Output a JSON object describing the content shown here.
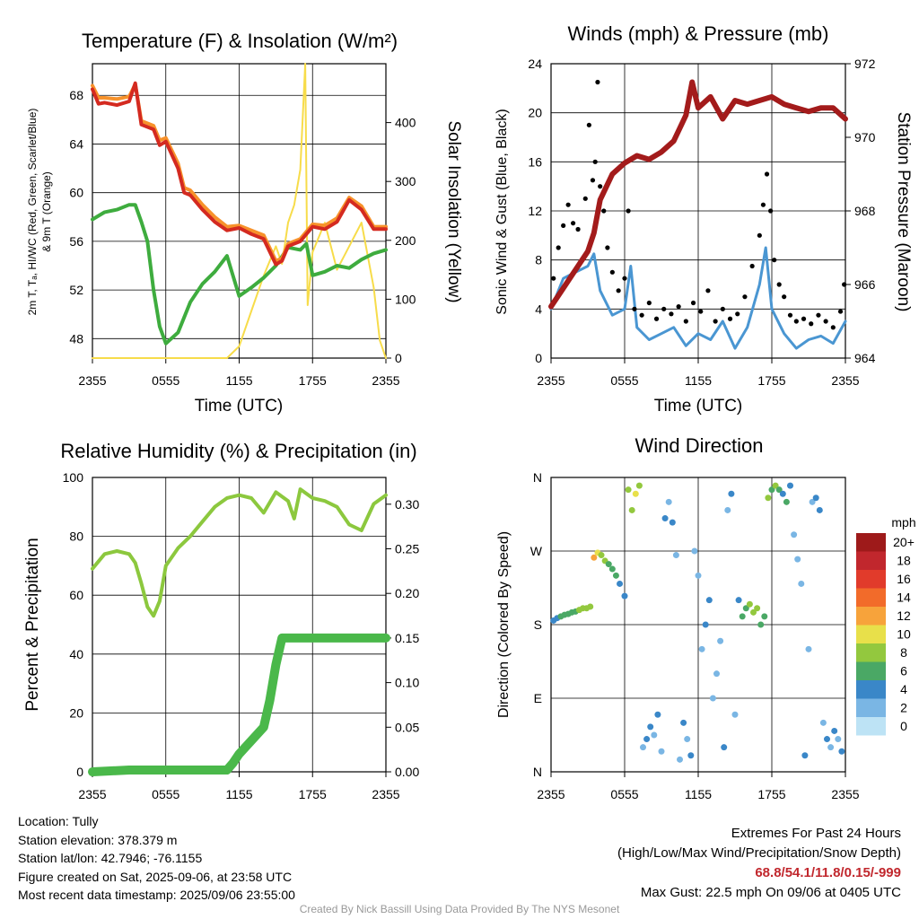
{
  "panels": {
    "temp": {
      "title": "Temperature (F) & Insolation (W/m²)",
      "ylabel_line1": "2m T, Tₐ, HI/WC (Red, Green, Scarlet/Blue)",
      "ylabel_line2": "& 9m T (Orange)",
      "ylabel_right": "Solar Insolation (Yellow)",
      "xlabel": "Time (UTC)"
    },
    "wind": {
      "title": "Winds (mph) & Pressure (mb)",
      "ylabel_left": "Sonic Wind & Gust (Blue, Black)",
      "ylabel_right": "Station Pressure (Maroon)",
      "xlabel": "Time (UTC)"
    },
    "rh": {
      "title": "Relative Humidity (%) & Precipitation (in)",
      "ylabel_left": "Percent & Precipitation"
    },
    "dir": {
      "title": "Wind Direction",
      "ylabel_left": "Direction (Colored By Speed)",
      "legend_title": "mph"
    }
  },
  "x_ticks": [
    "2355",
    "0555",
    "1155",
    "1755",
    "2355"
  ],
  "info": {
    "location": "Location: Tully",
    "elevation": "Station elevation: 378.379 m",
    "latlon": "Station lat/lon: 42.7946; -76.1155",
    "created": "Figure created on Sat, 2025-09-06, at 23:58 UTC",
    "recent": "Most recent data timestamp: 2025/09/06 23:55:00"
  },
  "extremes": {
    "title": "Extremes For Past 24 Hours",
    "subtitle": "(High/Low/Max Wind/Precipitation/Snow Depth)",
    "values": "68.8/54.1/11.8/0.15/-999",
    "gust": "Max Gust: 22.5 mph On 09/06 at 0405 UTC"
  },
  "credit": "Created By Nick Bassill Using Data Provided By The NYS Mesonet",
  "colors": {
    "temp": "#d42a20",
    "dewpoint": "#3eac3e",
    "temp9m": "#f7922b",
    "heatindex": "#e8372a",
    "windchill": "#3a87c8",
    "solar": "#f7dc4a",
    "wind": "#4a96d2",
    "gust": "#000000",
    "pressure": "#a31b1b",
    "rh": "#8cc83e",
    "precip": "#4ab84a"
  },
  "chart_data": [
    {
      "type": "line",
      "title": "Temperature (F) & Insolation (W/m²)",
      "xlabel": "Time (UTC)",
      "x_ticks": [
        "2355",
        "0555",
        "1155",
        "1755",
        "2355"
      ],
      "ylim": [
        46.4,
        70.6
      ],
      "y_ticks": [
        48,
        52,
        56,
        60,
        64,
        68
      ],
      "y2lim": [
        0,
        500
      ],
      "y2_ticks": [
        0,
        100,
        200,
        300,
        400
      ],
      "ylabel": "2m T, Tₐ, HI/WC (Red, Green, Scarlet/Blue) & 9m T (Orange)",
      "y2label": "Solar Insolation (Yellow)",
      "grid": true,
      "series": [
        {
          "name": "2m T",
          "color": "#d42a20",
          "axis": "left",
          "x": [
            0,
            0.5,
            1,
            2,
            3,
            3.5,
            4,
            5,
            5.5,
            6,
            7,
            7.5,
            8,
            9,
            10,
            11,
            12,
            13,
            14,
            15,
            15.5,
            16,
            17,
            18,
            19,
            20,
            21,
            22,
            23,
            24
          ],
          "y": [
            68.5,
            67.3,
            67.4,
            67.2,
            67.5,
            69.0,
            65.6,
            65.2,
            63.9,
            64.2,
            62.0,
            60.0,
            59.8,
            58.6,
            57.6,
            56.9,
            57.1,
            56.6,
            56.2,
            54.1,
            54.4,
            55.6,
            56.0,
            57.2,
            57.0,
            57.6,
            59.4,
            58.6,
            57.0,
            57.0
          ]
        },
        {
          "name": "9m T",
          "color": "#f7922b",
          "axis": "left",
          "x": [
            0,
            0.5,
            1,
            2,
            3,
            3.5,
            4,
            5,
            5.5,
            6,
            7,
            7.5,
            8,
            9,
            10,
            11,
            12,
            13,
            14,
            15,
            15.5,
            16,
            17,
            18,
            19,
            20,
            21,
            22,
            23,
            24
          ],
          "y": [
            68.8,
            67.8,
            67.8,
            67.7,
            67.9,
            68.9,
            65.9,
            65.5,
            64.3,
            64.5,
            62.4,
            60.4,
            60.2,
            59.0,
            58.0,
            57.2,
            57.3,
            56.9,
            56.5,
            54.4,
            54.6,
            55.8,
            56.2,
            57.4,
            57.3,
            57.9,
            59.6,
            58.9,
            57.2,
            57.2
          ]
        },
        {
          "name": "Dew point",
          "color": "#3eac3e",
          "axis": "left",
          "x": [
            0,
            1,
            2,
            3,
            3.5,
            4,
            4.5,
            5,
            5.5,
            6,
            7,
            8,
            9,
            10,
            11,
            12,
            13,
            14,
            15,
            16,
            17,
            17.5,
            18,
            19,
            20,
            21,
            22,
            23,
            24
          ],
          "y": [
            57.8,
            58.4,
            58.6,
            59.0,
            59.0,
            57.6,
            56.0,
            52.0,
            49.0,
            47.6,
            48.5,
            51.0,
            52.5,
            53.5,
            54.8,
            51.5,
            52.2,
            53.0,
            54.0,
            55.5,
            55.3,
            55.8,
            53.2,
            53.5,
            54.0,
            53.8,
            54.5,
            55.0,
            55.3
          ]
        },
        {
          "name": "Solar Insolation",
          "color": "#f7dc4a",
          "axis": "right",
          "x": [
            0,
            6,
            11,
            12,
            13,
            14,
            15,
            15.5,
            16,
            16.5,
            17,
            17.4,
            17.6,
            18,
            19,
            20,
            21,
            22,
            23,
            23.5,
            24
          ],
          "y": [
            0,
            0,
            0,
            20,
            80,
            140,
            190,
            160,
            230,
            260,
            320,
            500,
            90,
            180,
            230,
            150,
            190,
            230,
            120,
            30,
            0
          ]
        }
      ]
    },
    {
      "type": "line",
      "title": "Winds (mph) & Pressure (mb)",
      "xlabel": "Time (UTC)",
      "x_ticks": [
        "2355",
        "0555",
        "1155",
        "1755",
        "2355"
      ],
      "ylim": [
        0,
        24
      ],
      "y_ticks": [
        0,
        4,
        8,
        12,
        16,
        20,
        24
      ],
      "y2lim": [
        964,
        972
      ],
      "y2_ticks": [
        964,
        966,
        968,
        970,
        972
      ],
      "ylabel": "Sonic Wind & Gust (Blue, Black)",
      "y2label": "Station Pressure (Maroon)",
      "grid": true,
      "series": [
        {
          "name": "Sonic Wind",
          "color": "#4a96d2",
          "axis": "left",
          "x": [
            0,
            1,
            2,
            3,
            3.5,
            4,
            5,
            6,
            6.5,
            7,
            8,
            9,
            10,
            11,
            12,
            13,
            14,
            15,
            16,
            17,
            17.5,
            18,
            19,
            20,
            21,
            22,
            23,
            24
          ],
          "y": [
            4.0,
            6.5,
            7.0,
            7.5,
            8.5,
            5.5,
            3.5,
            4.0,
            7.5,
            2.5,
            1.5,
            2.0,
            2.5,
            1.0,
            2.0,
            1.5,
            3.0,
            0.8,
            2.5,
            6.0,
            9.0,
            4.0,
            2.0,
            0.8,
            1.5,
            1.8,
            1.2,
            3.0
          ]
        },
        {
          "name": "Gust",
          "color": "#000000",
          "axis": "left",
          "x": [
            0.2,
            0.6,
            1.0,
            1.4,
            1.8,
            2.2,
            2.5,
            2.8,
            3.1,
            3.4,
            3.6,
            3.8,
            4.0,
            4.3,
            4.6,
            5.0,
            5.5,
            6.0,
            6.3,
            6.8,
            7.4,
            8.0,
            8.6,
            9.2,
            9.8,
            10.4,
            11.0,
            11.6,
            12.2,
            12.8,
            13.4,
            14.0,
            14.6,
            15.2,
            15.8,
            16.4,
            17.0,
            17.3,
            17.6,
            17.9,
            18.2,
            18.6,
            19.0,
            19.5,
            20.0,
            20.6,
            21.2,
            21.8,
            22.4,
            23.0,
            23.6,
            23.9
          ],
          "y": [
            6.5,
            9.0,
            10.8,
            12.5,
            11.0,
            10.5,
            8.0,
            13.0,
            19.0,
            14.5,
            16.0,
            22.5,
            14.0,
            12.0,
            9.0,
            7.0,
            5.5,
            6.5,
            12.0,
            4.0,
            3.5,
            4.5,
            3.2,
            4.0,
            3.6,
            4.2,
            3.0,
            4.5,
            3.8,
            5.5,
            3.0,
            4.0,
            3.2,
            3.6,
            5.0,
            7.5,
            10.0,
            12.5,
            15.0,
            12.0,
            8.0,
            6.0,
            5.0,
            3.5,
            3.0,
            3.2,
            2.8,
            3.5,
            3.0,
            2.5,
            3.8,
            6.0
          ]
        },
        {
          "name": "Station Pressure",
          "color": "#a31b1b",
          "axis": "right",
          "x": [
            0,
            1,
            2,
            3,
            3.5,
            4,
            5,
            6,
            7,
            8,
            9,
            10,
            11,
            11.5,
            12,
            13,
            14,
            15,
            16,
            17,
            18,
            19,
            20,
            21,
            22,
            23,
            24
          ],
          "y": [
            965.4,
            965.9,
            966.4,
            966.9,
            967.4,
            968.3,
            969.0,
            969.3,
            969.5,
            969.4,
            969.6,
            969.9,
            970.6,
            971.5,
            970.8,
            971.1,
            970.5,
            971.0,
            970.9,
            971.0,
            971.1,
            970.9,
            970.8,
            970.7,
            970.8,
            970.8,
            970.5
          ]
        }
      ]
    },
    {
      "type": "line",
      "title": "Relative Humidity (%) & Precipitation (in)",
      "x_ticks": [
        "2355",
        "0555",
        "1155",
        "1755",
        "2355"
      ],
      "ylim": [
        0,
        100
      ],
      "y_ticks": [
        0,
        20,
        40,
        60,
        80,
        100
      ],
      "y2lim": [
        0,
        0.33
      ],
      "y2_ticks": [
        0.0,
        0.05,
        0.1,
        0.15,
        0.2,
        0.25,
        0.3
      ],
      "ylabel": "Percent & Precipitation",
      "grid": true,
      "series": [
        {
          "name": "Relative Humidity",
          "color": "#8cc83e",
          "axis": "left",
          "x": [
            0,
            1,
            2,
            3,
            3.5,
            4,
            4.5,
            5,
            5.5,
            6,
            7,
            8,
            9,
            10,
            11,
            12,
            13,
            14,
            15,
            16,
            16.5,
            17,
            18,
            19,
            20,
            21,
            22,
            23,
            24
          ],
          "y": [
            69,
            74,
            75,
            74,
            71,
            64,
            56,
            53,
            58,
            70,
            76,
            80,
            85,
            90,
            93,
            94,
            93,
            88,
            95,
            92,
            86,
            96,
            93,
            92,
            90,
            84,
            82,
            91,
            94
          ]
        },
        {
          "name": "Precipitation",
          "color": "#4ab84a",
          "axis": "right",
          "x": [
            0,
            3,
            11,
            11.5,
            12,
            13,
            14,
            14.5,
            15,
            15.5,
            16,
            17,
            24
          ],
          "y": [
            0.0,
            0.002,
            0.002,
            0.01,
            0.02,
            0.035,
            0.05,
            0.08,
            0.12,
            0.15,
            0.15,
            0.15,
            0.15
          ]
        }
      ]
    },
    {
      "type": "scatter",
      "title": "Wind Direction",
      "x_ticks": [
        "2355",
        "0555",
        "1155",
        "1755",
        "2355"
      ],
      "y_tick_labels": [
        "N",
        "E",
        "S",
        "W",
        "N"
      ],
      "ylim": [
        0,
        360
      ],
      "ylabel": "Direction (Colored By Speed)",
      "grid": true,
      "legend": {
        "title": "mph",
        "labels": [
          "20+",
          "18",
          "16",
          "14",
          "12",
          "10",
          "8",
          "6",
          "4",
          "2",
          "0"
        ],
        "colors": [
          "#9e1a1a",
          "#c1272d",
          "#e13b2b",
          "#f26b2a",
          "#f7a33b",
          "#e8e04a",
          "#93c83e",
          "#4aa865",
          "#3a87c8",
          "#7ab6e4",
          "#bde3f5"
        ]
      },
      "points_x": [
        0.2,
        0.5,
        0.8,
        1.1,
        1.4,
        1.7,
        2.0,
        2.3,
        2.6,
        2.9,
        3.2,
        3.5,
        3.8,
        4.1,
        4.4,
        4.7,
        5.0,
        5.3,
        5.6,
        6.0,
        6.3,
        6.6,
        6.9,
        7.2,
        7.5,
        7.8,
        8.1,
        8.4,
        8.7,
        9.0,
        9.3,
        9.6,
        9.9,
        10.2,
        10.5,
        10.8,
        11.1,
        11.4,
        11.7,
        12.0,
        12.3,
        12.6,
        12.9,
        13.2,
        13.5,
        13.8,
        14.1,
        14.4,
        14.7,
        15.0,
        15.3,
        15.6,
        15.9,
        16.2,
        16.5,
        16.8,
        17.1,
        17.4,
        17.7,
        18.0,
        18.3,
        18.6,
        18.9,
        19.2,
        19.5,
        19.8,
        20.1,
        20.4,
        20.7,
        21.0,
        21.3,
        21.6,
        21.9,
        22.2,
        22.5,
        22.8,
        23.1,
        23.4,
        23.7
      ],
      "points_y": [
        185,
        188,
        190,
        192,
        193,
        195,
        196,
        198,
        200,
        200,
        202,
        262,
        268,
        265,
        258,
        254,
        248,
        240,
        230,
        215,
        345,
        320,
        340,
        350,
        30,
        40,
        55,
        45,
        70,
        25,
        310,
        330,
        305,
        265,
        15,
        60,
        40,
        20,
        270,
        240,
        150,
        180,
        210,
        90,
        120,
        160,
        30,
        320,
        340,
        70,
        210,
        190,
        200,
        205,
        195,
        200,
        180,
        190,
        335,
        345,
        350,
        345,
        340,
        330,
        350,
        290,
        260,
        230,
        20,
        150,
        330,
        335,
        320,
        60,
        40,
        30,
        50,
        40,
        25
      ],
      "points_speed": [
        4,
        4,
        5,
        6,
        6,
        6,
        6,
        7,
        7,
        7,
        7,
        12,
        9,
        8,
        8,
        6,
        6,
        5,
        4,
        4,
        7,
        8,
        9,
        7,
        2,
        3,
        3,
        2,
        4,
        1,
        3,
        2,
        3,
        2,
        2,
        4,
        1,
        3,
        2,
        2,
        1,
        3,
        3,
        2,
        2,
        1,
        3,
        2,
        4,
        1,
        3,
        5,
        6,
        7,
        8,
        8,
        6,
        5,
        8,
        6,
        7,
        5,
        4,
        6,
        3,
        2,
        1,
        2,
        3,
        1,
        2,
        4,
        3,
        2,
        3,
        2,
        4,
        2,
        3
      ]
    }
  ]
}
